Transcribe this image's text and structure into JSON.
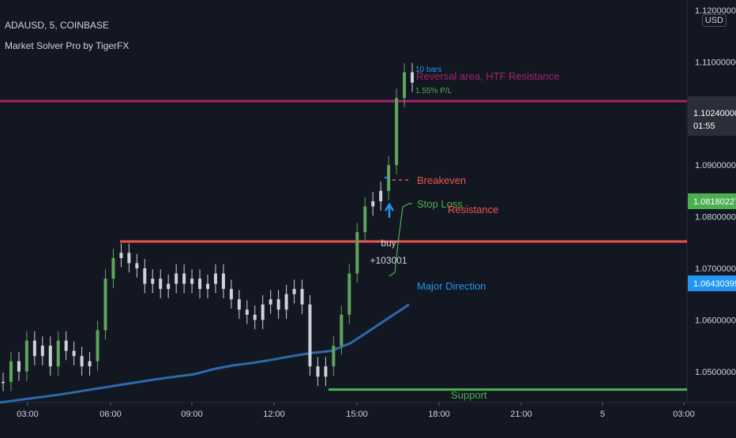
{
  "header": {
    "symbol_line": "ADAUSD, 5, COINBASE",
    "indicator_line": "Market Solver Pro by TigerFX"
  },
  "currency_button": "USD",
  "colors": {
    "background": "#131722",
    "candle_up": "#5fa55a",
    "candle_neutral": "#cfd2d9",
    "resistance_magenta": "#a0236a",
    "resistance_red": "#ef5350",
    "support_green": "#4caf50",
    "major_direction": "#2962ff",
    "stop_loss": "#4caf50",
    "breakeven": "#ef5350",
    "price_tag_green": "#4caf50",
    "price_tag_blue": "#2196f3"
  },
  "chart_data": {
    "type": "line",
    "xlabel": "",
    "ylabel": "",
    "x_ticks": [
      "03:00",
      "06:00",
      "09:00",
      "12:00",
      "15:00",
      "18:00",
      "21:00",
      "5",
      "03:00"
    ],
    "y_ticks": [
      "1.05000000",
      "1.06000000",
      "1.07000000",
      "1.08000000",
      "1.09000000",
      "1.10000000",
      "1.11000000",
      "1.12000000"
    ],
    "ylim": [
      1.044,
      1.122
    ],
    "price_close": [
      1.048,
      1.052,
      1.05,
      1.056,
      1.053,
      1.055,
      1.051,
      1.056,
      1.054,
      1.053,
      1.051,
      1.052,
      1.058,
      1.068,
      1.072,
      1.073,
      1.071,
      1.07,
      1.067,
      1.068,
      1.066,
      1.067,
      1.069,
      1.067,
      1.068,
      1.066,
      1.067,
      1.069,
      1.066,
      1.064,
      1.062,
      1.061,
      1.06,
      1.063,
      1.064,
      1.062,
      1.065,
      1.066,
      1.063,
      1.051,
      1.049,
      1.051,
      1.055,
      1.061,
      1.069,
      1.077,
      1.082,
      1.083,
      1.085,
      1.09,
      1.103,
      1.108,
      1.106
    ],
    "major_direction": [
      1.044,
      1.0445,
      1.045,
      1.0455,
      1.0461,
      1.0467,
      1.0473,
      1.0479,
      1.0485,
      1.049,
      1.0495,
      1.0505,
      1.0512,
      1.0517,
      1.0523,
      1.053,
      1.0536,
      1.054,
      1.0555,
      1.058,
      1.0605,
      1.063
    ],
    "levels": [
      {
        "name": "htf_resistance",
        "value": 1.1024,
        "color": "#a0236a"
      },
      {
        "name": "resistance",
        "value": 1.0752,
        "color": "#ef5350"
      },
      {
        "name": "support",
        "value": 1.0465,
        "color": "#4caf50"
      }
    ],
    "labels": {
      "bars": "10 bars",
      "reversal": "Reversal area, HTF Resistance",
      "pl": "1.55% P/L",
      "breakeven": "Breakeven",
      "stop_loss": "Stop Loss",
      "resistance": "Resistance",
      "buy": "buy",
      "buy_value": "+103001",
      "major_direction": "Major Direction",
      "support": "Support"
    },
    "price_tags": {
      "last_price": "1.10240000",
      "countdown": "01:55",
      "stop_loss_price": "1.08180227",
      "major_direction_price": "1.06430395"
    },
    "grid": false,
    "legend": "none"
  }
}
